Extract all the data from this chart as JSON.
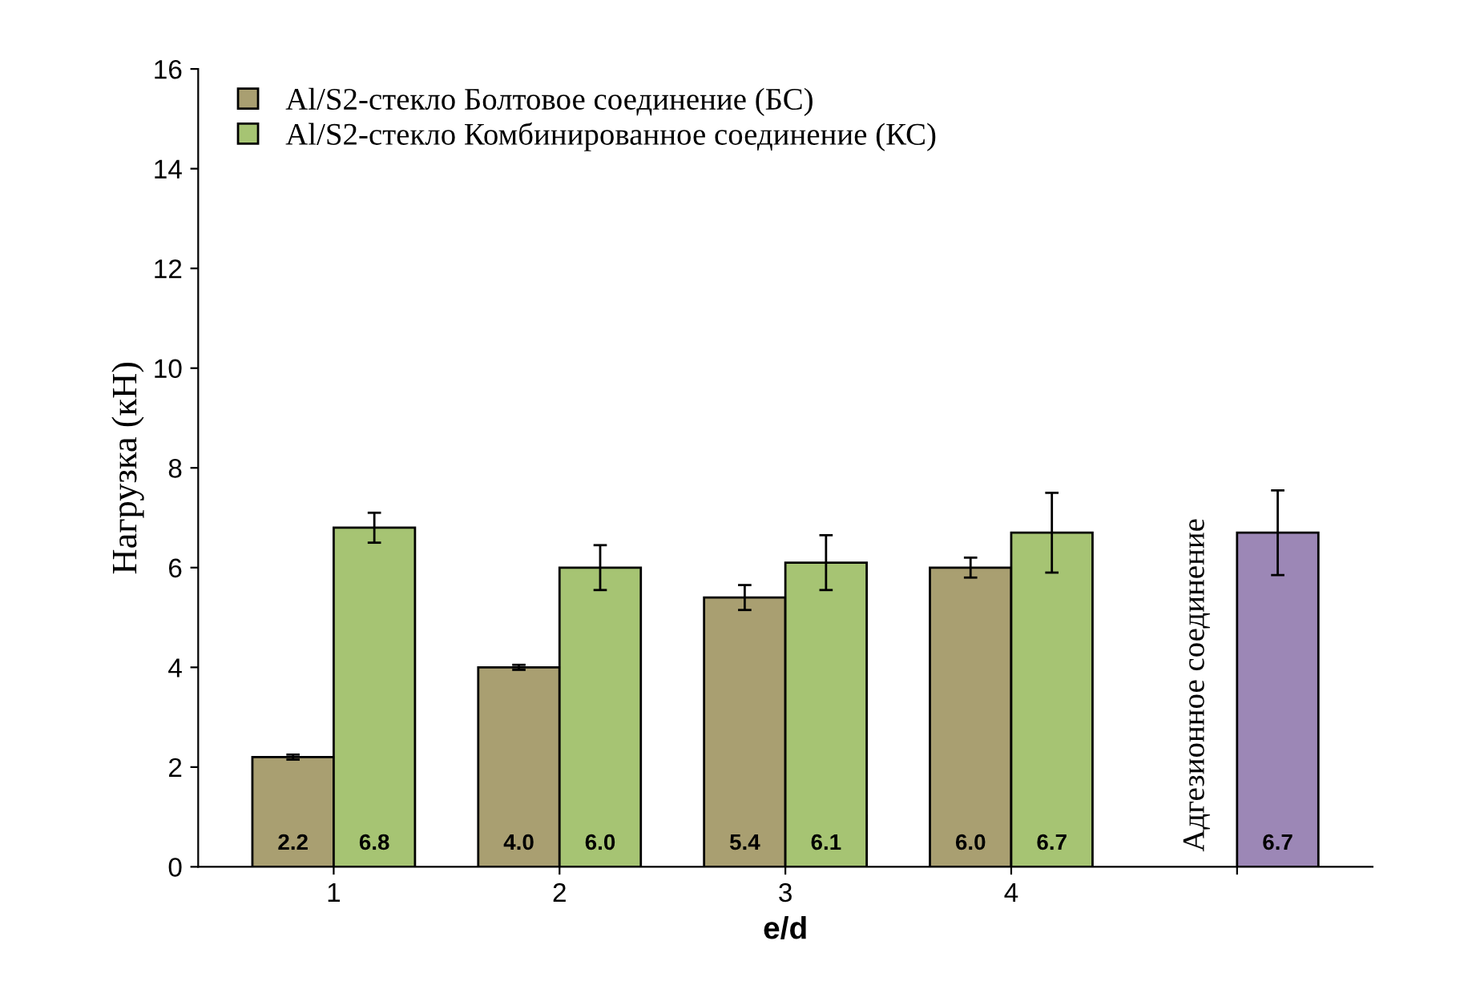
{
  "chart_data": {
    "type": "bar",
    "xlabel": "e/d",
    "ylabel": "Нагрузка (кН)",
    "categories": [
      "1",
      "2",
      "3",
      "4",
      null
    ],
    "series": [
      {
        "name": "Al/S2-стекло Болтовое соединение (БС)",
        "color": "#a99f71",
        "values": [
          2.2,
          4.0,
          5.4,
          6.0,
          null
        ],
        "errors": [
          0.05,
          0.05,
          0.25,
          0.2,
          null
        ],
        "value_labels": [
          "2.2",
          "4.0",
          "5.4",
          "6.0",
          null
        ]
      },
      {
        "name": "Al/S2-стекло Комбинированное соединение (КС)",
        "color": "#a6c473",
        "values": [
          6.8,
          6.0,
          6.1,
          6.7,
          null
        ],
        "errors": [
          0.3,
          0.45,
          0.55,
          0.8,
          null
        ],
        "value_labels": [
          "6.8",
          "6.0",
          "6.1",
          "6.7",
          null
        ]
      },
      {
        "name": "Адгезионное соединение",
        "color": "#9c87b6",
        "values": [
          null,
          null,
          null,
          null,
          6.7
        ],
        "errors": [
          null,
          null,
          null,
          null,
          0.85
        ],
        "value_labels": [
          null,
          null,
          null,
          null,
          "6.7"
        ]
      }
    ],
    "ylim": [
      0,
      16
    ],
    "yticks": [
      0,
      2,
      4,
      6,
      8,
      10,
      12,
      14,
      16
    ],
    "grid": false,
    "legend": "top left",
    "marker": "square"
  }
}
